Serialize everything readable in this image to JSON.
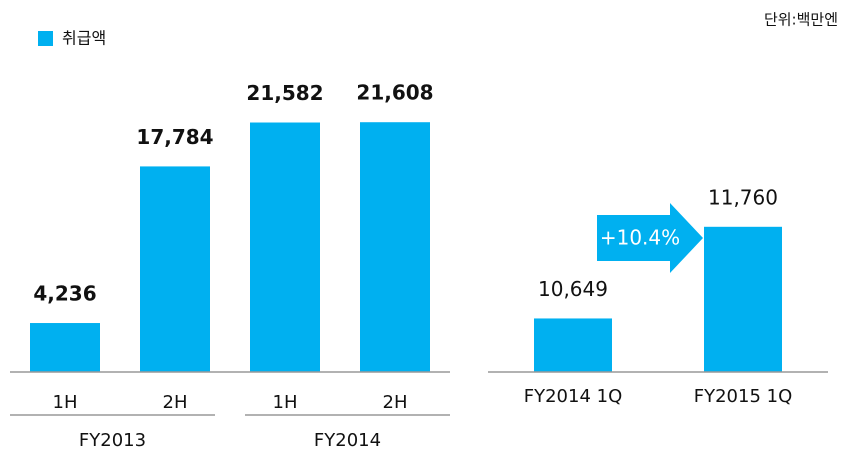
{
  "chart_data": [
    {
      "type": "bar",
      "unit_label": "단위:백만엔",
      "categories": [
        "1H",
        "2H",
        "1H",
        "2H"
      ],
      "groups": [
        "FY2013",
        "FY2014"
      ],
      "series": [
        {
          "name": "취급액",
          "color": "#00b0f0",
          "values": [
            4236,
            17784,
            21582,
            21608
          ],
          "value_labels": [
            "4,236",
            "17,784",
            "21,582",
            "21,608"
          ]
        }
      ],
      "ylim": [
        0,
        25000
      ],
      "legend": "top-left"
    },
    {
      "type": "bar",
      "categories": [
        "FY2014 1Q",
        "FY2015 1Q"
      ],
      "series": [
        {
          "color": "#00b0f0",
          "values": [
            10649,
            11760
          ],
          "value_labels": [
            "10,649",
            "11,760"
          ]
        }
      ],
      "ylim": [
        10000,
        12000
      ],
      "annotation": "+10.4%"
    }
  ]
}
